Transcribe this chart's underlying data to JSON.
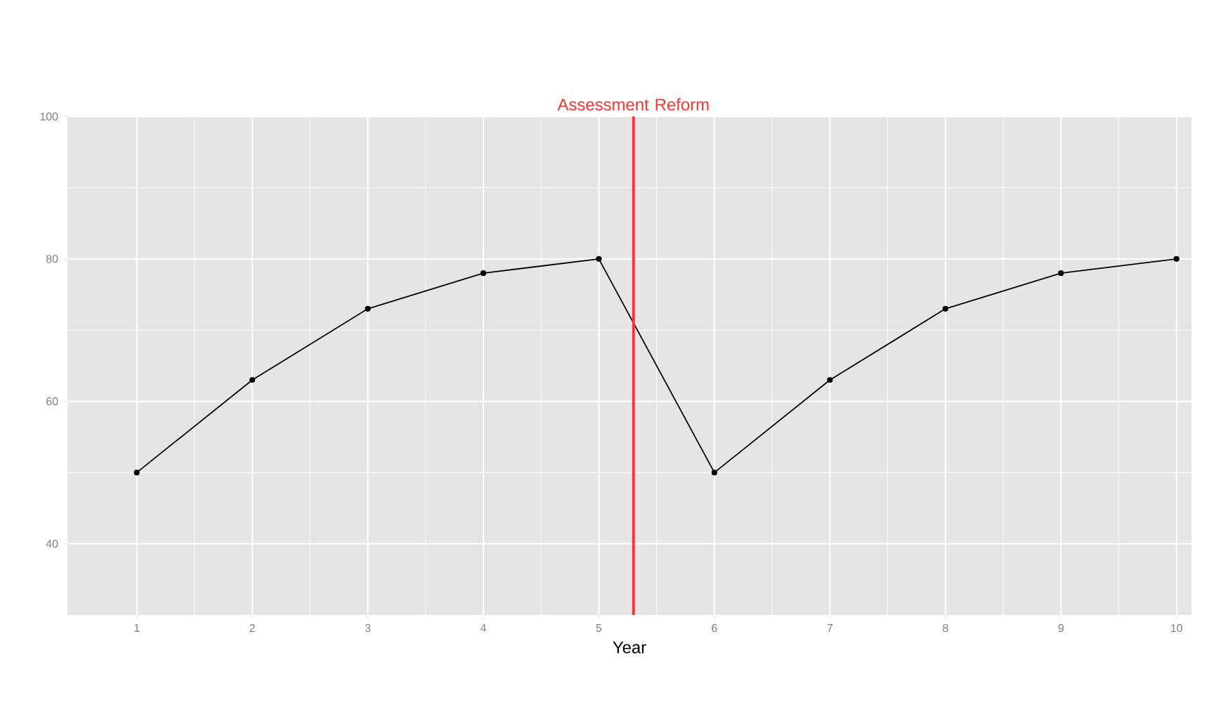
{
  "chart_data": {
    "type": "line",
    "xlabel": "Year",
    "x": [
      1,
      2,
      3,
      4,
      5,
      6,
      7,
      8,
      9,
      10
    ],
    "series": [
      {
        "color": "#000000",
        "values": [
          50,
          63,
          73,
          78,
          80,
          50,
          63,
          73,
          78,
          80
        ]
      }
    ],
    "xlim": [
      0.4,
      10.13
    ],
    "ylim": [
      30,
      100
    ],
    "xticks": [
      1,
      2,
      3,
      4,
      5,
      6,
      7,
      8,
      9,
      10
    ],
    "yticks": [
      40,
      60,
      80,
      100
    ],
    "grid": true,
    "marker": "circle",
    "line_style": "solid",
    "ref_lines": [
      {
        "axis": "x",
        "value": 5.3,
        "label": "Assessment Reform",
        "color": "#ff3333"
      }
    ]
  }
}
